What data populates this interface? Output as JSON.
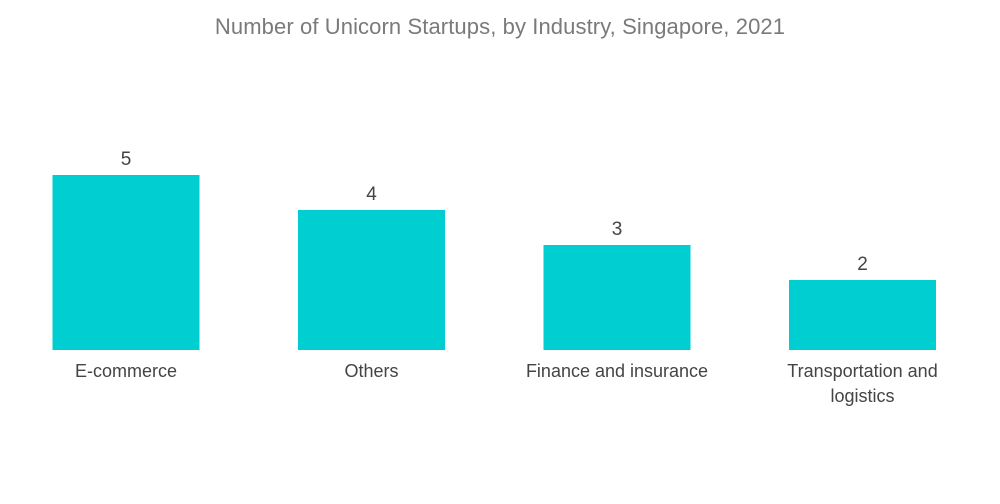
{
  "chart_data": {
    "type": "bar",
    "title": "Number of Unicorn Startups, by Industry, Singapore, 2021",
    "categories": [
      [
        "E-commerce"
      ],
      [
        "Others"
      ],
      [
        "Finance and insurance"
      ],
      [
        "Transportation and",
        "logistics"
      ]
    ],
    "values": [
      5,
      4,
      3,
      2
    ],
    "ylim": [
      0,
      5
    ],
    "grid": false,
    "legend": "none",
    "colors": {
      "bar": "#00CED1",
      "title": "#7a7a7a",
      "text": "#444444"
    }
  }
}
